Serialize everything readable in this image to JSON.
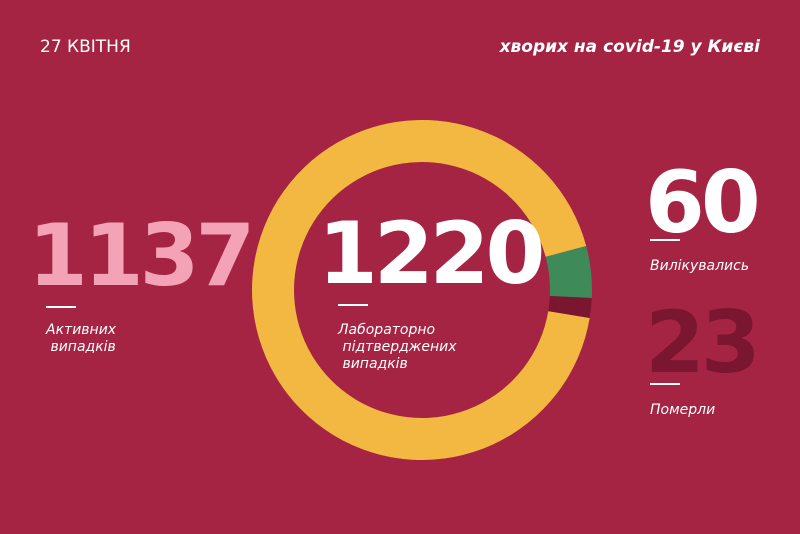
{
  "chart_data": {
    "type": "pie",
    "donut": true,
    "date": "27 КВІТНЯ",
    "title": "хворих на covid-19 у Києві",
    "total": 1220,
    "total_label": "Лабораторно підтверджених випадків",
    "categories": [
      "Активних випадків",
      "Вилікувались",
      "Померли"
    ],
    "values": [
      1137,
      60,
      23
    ],
    "colors": [
      "#f2b842",
      "#3e8a58",
      "#7b1630"
    ]
  }
}
